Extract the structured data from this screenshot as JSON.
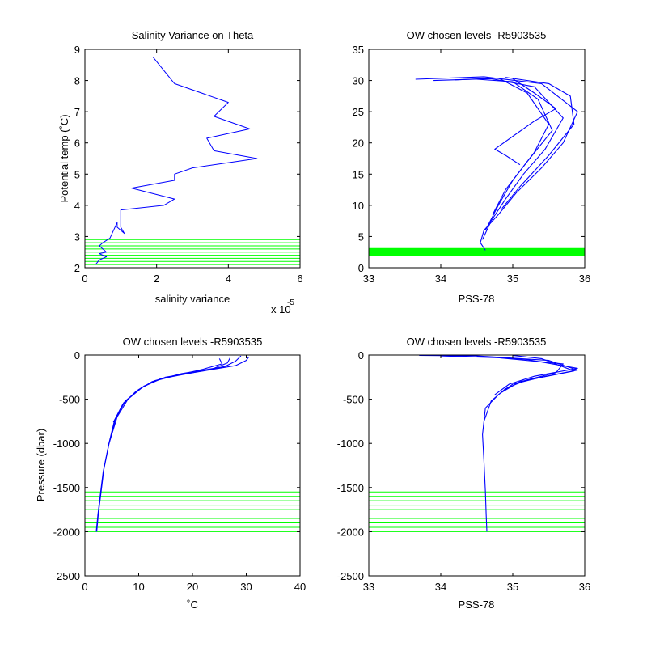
{
  "figure": {
    "background": "#ffffff",
    "profile_color": "#0000ff",
    "level_color": "#00ff00"
  },
  "chart_data": [
    {
      "id": "p1",
      "type": "line",
      "title": "Salinity Variance on Theta",
      "xlabel": "salinity variance",
      "ylabel": "Potential temp (˚C)",
      "x_exponent_label": "x 10",
      "x_exponent": "-5",
      "xlim": [
        0,
        6
      ],
      "ylim": [
        2,
        9
      ],
      "xticks": [
        0,
        2,
        4,
        6
      ],
      "yticks": [
        2,
        3,
        4,
        5,
        6,
        7,
        8,
        9
      ],
      "xtick_labels": [
        "0",
        "2",
        "4",
        "6"
      ],
      "ytick_labels": [
        "2",
        "3",
        "4",
        "5",
        "6",
        "7",
        "8",
        "9"
      ],
      "grid": false,
      "series": [
        {
          "color": "#0000ff",
          "x": [
            1.9,
            2.5,
            4.0,
            3.6,
            4.6,
            3.4,
            3.6,
            4.8,
            3.0,
            2.5,
            2.5,
            1.3,
            2.5,
            2.2,
            1.0,
            1.0,
            1.1,
            0.9,
            0.9,
            0.7,
            0.5,
            0.4,
            0.6,
            0.4,
            0.6,
            0.4,
            0.3
          ],
          "y": [
            8.75,
            7.9,
            7.3,
            6.85,
            6.45,
            6.15,
            5.75,
            5.5,
            5.2,
            5.0,
            4.8,
            4.55,
            4.2,
            4.0,
            3.85,
            3.3,
            3.1,
            3.3,
            3.45,
            2.95,
            2.8,
            2.7,
            2.5,
            2.45,
            2.35,
            2.25,
            2.1
          ]
        }
      ],
      "hlines": [
        2.1,
        2.2,
        2.3,
        2.4,
        2.5,
        2.6,
        2.7,
        2.8,
        2.9
      ]
    },
    {
      "id": "p2",
      "type": "line",
      "title": "OW chosen levels -R5903535",
      "xlabel": "PSS-78",
      "ylabel": "",
      "xlim": [
        33,
        36
      ],
      "ylim": [
        0,
        35
      ],
      "xticks": [
        33,
        34,
        35,
        36
      ],
      "yticks": [
        0,
        5,
        10,
        15,
        20,
        25,
        30,
        35
      ],
      "xtick_labels": [
        "33",
        "34",
        "35",
        "36"
      ],
      "ytick_labels": [
        "0",
        "5",
        "10",
        "15",
        "20",
        "25",
        "30",
        "35"
      ],
      "grid": false,
      "series": [
        {
          "color": "#0000ff",
          "x": [
            33.65,
            34.6,
            35.4,
            35.9,
            35.7,
            35.4,
            35.05,
            34.8,
            34.6,
            34.55,
            34.62
          ],
          "y": [
            30.2,
            30.6,
            29.5,
            25.0,
            20.0,
            16.0,
            12.0,
            8.5,
            6.0,
            4.0,
            2.8
          ]
        },
        {
          "color": "#0000ff",
          "x": [
            33.9,
            34.7,
            35.3,
            35.7,
            35.45,
            35.15,
            34.9,
            34.7,
            34.58
          ],
          "y": [
            30.0,
            30.3,
            29.0,
            24.0,
            19.0,
            15.0,
            11.0,
            7.5,
            4.5
          ]
        },
        {
          "color": "#0000ff",
          "x": [
            34.2,
            34.8,
            35.2,
            35.5,
            35.3,
            35.0,
            34.8,
            34.62
          ],
          "y": [
            30.1,
            30.4,
            28.0,
            23.0,
            18.5,
            14.0,
            10.0,
            6.0
          ]
        },
        {
          "color": "#0000ff",
          "x": [
            34.5,
            35.0,
            35.35,
            35.55,
            35.2,
            34.9,
            34.72
          ],
          "y": [
            30.2,
            29.8,
            27.0,
            22.0,
            17.0,
            12.5,
            8.5
          ]
        },
        {
          "color": "#0000ff",
          "x": [
            34.9,
            35.5,
            35.8,
            35.85,
            35.5,
            35.1,
            34.85
          ],
          "y": [
            30.5,
            29.5,
            27.5,
            23.0,
            18.0,
            13.0,
            9.5
          ]
        },
        {
          "color": "#0000ff",
          "x": [
            35.0,
            35.3,
            35.6,
            35.3,
            34.75,
            34.9,
            35.1
          ],
          "y": [
            30.3,
            28.0,
            25.5,
            23.5,
            19.0,
            18.0,
            16.5
          ]
        }
      ],
      "hlines": [
        2.0,
        2.2,
        2.4,
        2.6,
        2.8,
        3.0
      ]
    },
    {
      "id": "p3",
      "type": "line",
      "title": "OW chosen levels -R5903535",
      "xlabel": "˚C",
      "ylabel": "Pressure (dbar)",
      "xlim": [
        0,
        40
      ],
      "ylim": [
        -2500,
        0
      ],
      "xticks": [
        0,
        10,
        20,
        30,
        40
      ],
      "yticks": [
        -2500,
        -2000,
        -1500,
        -1000,
        -500,
        0
      ],
      "xtick_labels": [
        "0",
        "10",
        "20",
        "30",
        "40"
      ],
      "ytick_labels": [
        "-2500",
        "-2000",
        "-1500",
        "-1000",
        "-500",
        "0"
      ],
      "grid": false,
      "series": [
        {
          "color": "#0000ff",
          "x": [
            30.5,
            30.0,
            28.0,
            22.0,
            15.0,
            11.0,
            8.0,
            6.0,
            4.5,
            3.5,
            3.0,
            2.5,
            2.2
          ],
          "y": [
            -20,
            -60,
            -120,
            -180,
            -250,
            -350,
            -500,
            -700,
            -1000,
            -1300,
            -1550,
            -1800,
            -2000
          ]
        },
        {
          "color": "#0000ff",
          "x": [
            29.0,
            28.0,
            26.0,
            20.0,
            14.0,
            10.5,
            7.5,
            5.7,
            4.4,
            3.4,
            2.9,
            2.4,
            2.1
          ],
          "y": [
            -10,
            -70,
            -130,
            -200,
            -270,
            -370,
            -520,
            -720,
            -1020,
            -1320,
            -1560,
            -1810,
            -2000
          ]
        },
        {
          "color": "#0000ff",
          "x": [
            27.0,
            26.5,
            24.0,
            18.0,
            13.0,
            10.0,
            7.2,
            5.5,
            4.3
          ],
          "y": [
            -30,
            -90,
            -150,
            -210,
            -290,
            -390,
            -540,
            -740,
            -1040
          ]
        },
        {
          "color": "#0000ff",
          "x": [
            25.0,
            25.5,
            22.0,
            17.0,
            12.5,
            9.5,
            7.0,
            5.3
          ],
          "y": [
            -40,
            -100,
            -160,
            -230,
            -300,
            -410,
            -560,
            -760
          ]
        }
      ],
      "hlines": [
        -1550,
        -1600,
        -1650,
        -1700,
        -1750,
        -1800,
        -1850,
        -1900,
        -1950,
        -2000
      ]
    },
    {
      "id": "p4",
      "type": "line",
      "title": "OW chosen levels -R5903535",
      "xlabel": "PSS-78",
      "ylabel": "",
      "xlim": [
        33,
        36
      ],
      "ylim": [
        -2500,
        0
      ],
      "xticks": [
        33,
        34,
        35,
        36
      ],
      "yticks": [
        -2500,
        -2000,
        -1500,
        -1000,
        -500,
        0
      ],
      "xtick_labels": [
        "33",
        "34",
        "35",
        "36"
      ],
      "ytick_labels": [
        "-2500",
        "-2000",
        "-1500",
        "-1000",
        "-500",
        "0"
      ],
      "grid": false,
      "series": [
        {
          "color": "#0000ff",
          "x": [
            33.7,
            34.5,
            35.5,
            35.9,
            35.4,
            35.0,
            34.8,
            34.62,
            34.58,
            34.6,
            34.62,
            34.63,
            34.64
          ],
          "y": [
            -5,
            -10,
            -60,
            -170,
            -250,
            -330,
            -450,
            -600,
            -900,
            -1200,
            -1550,
            -1800,
            -2000
          ]
        },
        {
          "color": "#0000ff",
          "x": [
            34.0,
            34.8,
            35.7,
            35.6,
            35.2,
            34.9,
            34.7,
            34.6
          ],
          "y": [
            -10,
            -30,
            -100,
            -200,
            -280,
            -380,
            -520,
            -750
          ]
        },
        {
          "color": "#0000ff",
          "x": [
            34.5,
            35.2,
            35.9,
            35.3,
            34.95,
            34.75
          ],
          "y": [
            -15,
            -50,
            -150,
            -240,
            -330,
            -450
          ]
        },
        {
          "color": "#0000ff",
          "x": [
            35.0,
            35.4,
            35.85,
            35.1,
            34.85
          ],
          "y": [
            -5,
            -40,
            -180,
            -300,
            -420
          ]
        }
      ],
      "hlines": [
        -1550,
        -1600,
        -1650,
        -1700,
        -1750,
        -1800,
        -1850,
        -1900,
        -1950,
        -2000
      ]
    }
  ]
}
